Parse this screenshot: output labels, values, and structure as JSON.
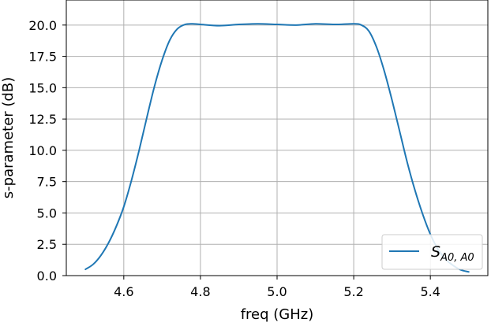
{
  "chart_data": {
    "type": "line",
    "title": "",
    "xlabel": "freq (GHz)",
    "ylabel": "s-parameter (dB)",
    "xlim": [
      4.45,
      5.55
    ],
    "ylim": [
      0.0,
      22.0
    ],
    "xticks": [
      4.6,
      4.8,
      5.0,
      5.2,
      5.4
    ],
    "xtick_labels": [
      "4.6",
      "4.8",
      "5.0",
      "5.2",
      "5.4"
    ],
    "yticks": [
      0.0,
      2.5,
      5.0,
      7.5,
      10.0,
      12.5,
      15.0,
      17.5,
      20.0
    ],
    "ytick_labels": [
      "0.0",
      "2.5",
      "5.0",
      "7.5",
      "10.0",
      "12.5",
      "15.0",
      "17.5",
      "20.0"
    ],
    "grid": true,
    "legend_position": "lower-right",
    "series": [
      {
        "name": "S",
        "name_subscript": "A0, A0",
        "color": "#1f77b4",
        "x": [
          4.5,
          4.52,
          4.54,
          4.56,
          4.58,
          4.6,
          4.62,
          4.64,
          4.66,
          4.68,
          4.7,
          4.72,
          4.74,
          4.76,
          4.78,
          4.8,
          4.85,
          4.9,
          4.95,
          5.0,
          5.05,
          5.1,
          5.15,
          5.2,
          5.22,
          5.24,
          5.26,
          5.28,
          5.3,
          5.32,
          5.34,
          5.36,
          5.38,
          5.4,
          5.42,
          5.44,
          5.46,
          5.48,
          5.5
        ],
        "y": [
          0.5,
          0.9,
          1.6,
          2.6,
          3.9,
          5.5,
          7.6,
          10.0,
          12.6,
          15.1,
          17.2,
          18.8,
          19.7,
          20.05,
          20.1,
          20.05,
          19.95,
          20.05,
          20.1,
          20.05,
          20.0,
          20.1,
          20.05,
          20.1,
          20.0,
          19.5,
          18.2,
          16.3,
          14.0,
          11.5,
          9.0,
          6.8,
          4.9,
          3.3,
          2.1,
          1.3,
          0.8,
          0.45,
          0.3
        ]
      }
    ]
  }
}
